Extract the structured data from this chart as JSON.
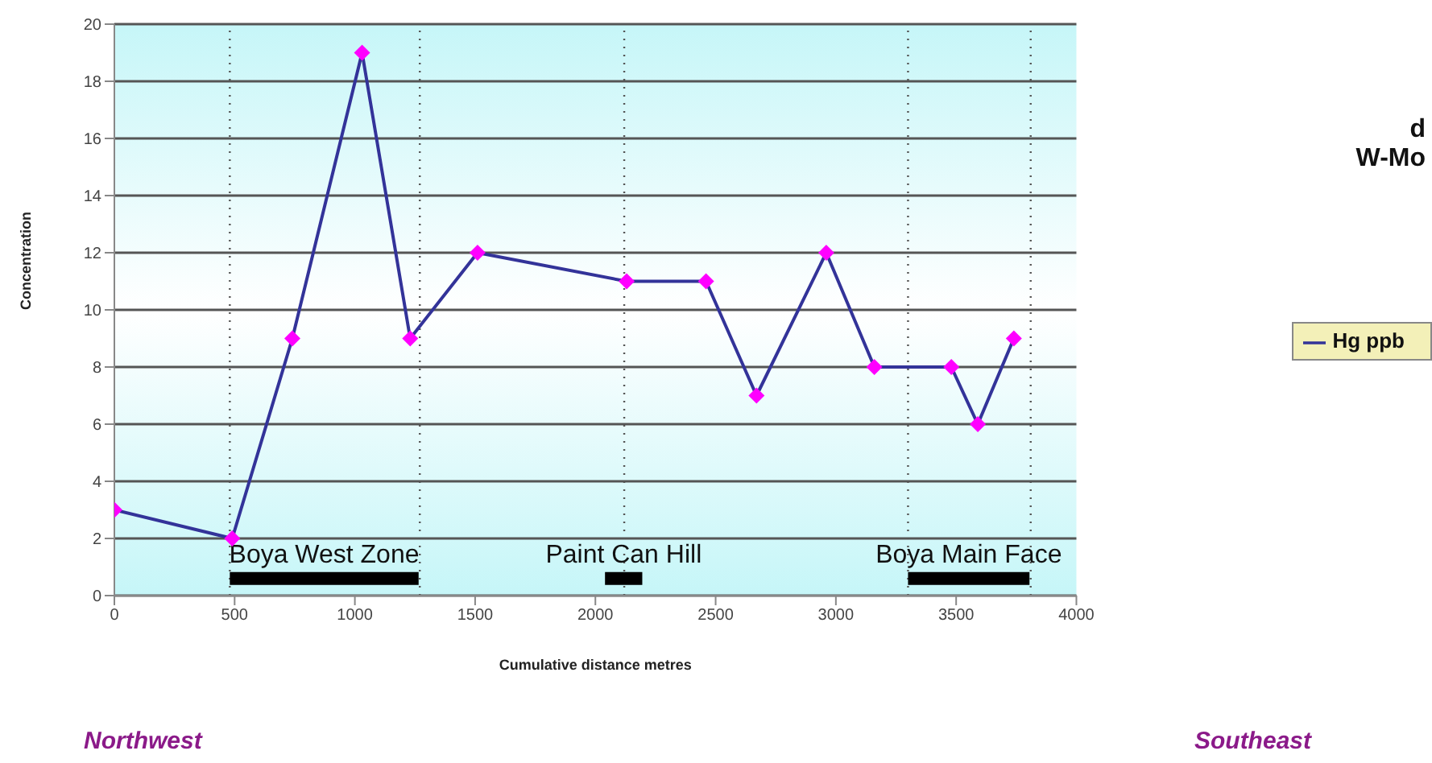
{
  "chart_data": {
    "type": "line",
    "title": "d",
    "subtitle": "W-Mo",
    "xlabel": "Cumulative distance metres",
    "ylabel": "Concentration",
    "x": [
      0,
      490,
      740,
      1030,
      1230,
      1510,
      2130,
      2460,
      2670,
      2960,
      3160,
      3480,
      3590,
      3740
    ],
    "series": [
      {
        "name": "Hg ppb",
        "color": "#333399",
        "colors": [
          "#ff00ff",
          "#ff00ff",
          "#ff00ff",
          "#ff00ff",
          "#ff00ff",
          "#ff00ff",
          "#ff00ff",
          "#ff00ff",
          "#ff00ff",
          "#ff00ff",
          "#ff00ff",
          "#ff00ff",
          "#ff00ff",
          "#ff00ff"
        ],
        "marker": "diamond",
        "values": [
          3,
          2,
          9,
          19,
          9,
          12,
          11,
          11,
          7,
          12,
          8,
          8,
          6,
          9
        ]
      },
      {
        "type": "line",
        "color": "#000000",
        "marker": "none",
        "x": [
          480,
          1265
        ],
        "values": [
          0.6,
          0.6
        ]
      },
      {
        "type": "line",
        "color": "#000000",
        "marker": "none",
        "x": [
          2040,
          2195
        ],
        "values": [
          0.6,
          0.6
        ]
      },
      {
        "type": "line",
        "color": "#000000",
        "marker": "none",
        "x": [
          3300,
          3805
        ],
        "values": [
          0.6,
          0.6
        ]
      }
    ],
    "xlim": [
      0,
      4000
    ],
    "xticks": [
      0,
      500,
      1000,
      1500,
      2000,
      2500,
      3000,
      3500,
      4000
    ],
    "ylim": [
      0,
      20
    ],
    "yticks": [
      0,
      2,
      4,
      6,
      8,
      10,
      12,
      14,
      16,
      18,
      20
    ],
    "grid": "y",
    "legend": "right",
    "line_style": "solid",
    "ref_lines": [
      {
        "axis": "x",
        "value": 480,
        "line_style": "dotted",
        "color": "#555555"
      },
      {
        "axis": "x",
        "value": 1270,
        "line_style": "dotted",
        "color": "#555555"
      },
      {
        "axis": "x",
        "value": 2120,
        "line_style": "dotted",
        "color": "#555555"
      },
      {
        "axis": "x",
        "value": 3300,
        "line_style": "dotted",
        "color": "#555555"
      },
      {
        "axis": "x",
        "value": 3810,
        "line_style": "dotted",
        "color": "#555555"
      }
    ],
    "annotations": [
      {
        "text": "Boya West Zone",
        "x": 872.5,
        "y": 0.6
      },
      {
        "text": "Paint Can Hill",
        "x": 2117.5,
        "y": 0.6
      },
      {
        "text": "Boya Main Face",
        "x": 3552.5,
        "y": 0.6
      },
      "Northwest",
      "Southeast"
    ]
  }
}
